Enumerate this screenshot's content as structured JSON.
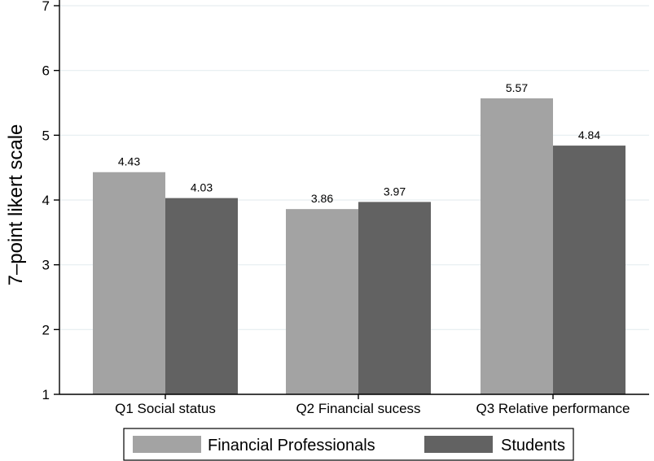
{
  "chart_data": {
    "type": "bar",
    "categories": [
      "Q1 Social status",
      "Q2 Financial sucess",
      "Q3 Relative performance"
    ],
    "series": [
      {
        "name": "Financial Professionals",
        "values": [
          4.43,
          3.86,
          5.57
        ],
        "labels": [
          "4.43",
          "3.86",
          "5.57"
        ],
        "color": "#a3a3a3"
      },
      {
        "name": "Students",
        "values": [
          4.03,
          3.97,
          4.84
        ],
        "labels": [
          "4.03",
          "3.97",
          "4.84"
        ],
        "color": "#626262"
      }
    ],
    "title": "",
    "xlabel": "",
    "ylabel": "7–point likert scale",
    "ylim": [
      1,
      7
    ],
    "yticks": [
      1,
      2,
      3,
      4,
      5,
      6,
      7
    ],
    "grid": true,
    "grid_color": "#e6eef0",
    "legend_position": "bottom"
  }
}
